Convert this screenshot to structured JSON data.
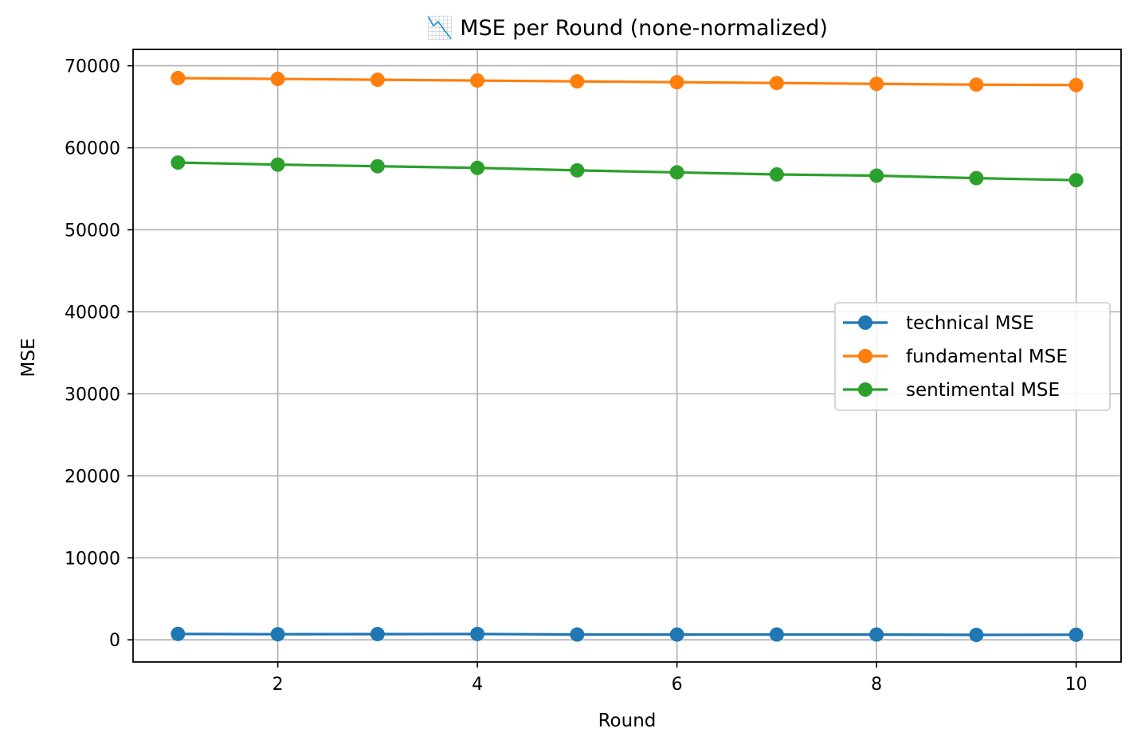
{
  "chart_data": {
    "type": "line",
    "title": "📉 MSE per Round (none-normalized)",
    "xlabel": "Round",
    "ylabel": "MSE",
    "x": [
      1,
      2,
      3,
      4,
      5,
      6,
      7,
      8,
      9,
      10
    ],
    "xlim": [
      0.55,
      10.45
    ],
    "ylim": [
      -2700,
      72000
    ],
    "xticks": [
      2,
      4,
      6,
      8,
      10
    ],
    "yticks": [
      0,
      10000,
      20000,
      30000,
      40000,
      50000,
      60000,
      70000
    ],
    "grid": true,
    "legend_position": "center-right",
    "series": [
      {
        "name": "technical MSE",
        "color": "#1f77b4",
        "values": [
          720,
          680,
          700,
          710,
          650,
          640,
          650,
          640,
          600,
          620
        ]
      },
      {
        "name": "fundamental MSE",
        "color": "#ff7f0e",
        "values": [
          68500,
          68400,
          68300,
          68200,
          68100,
          68000,
          67900,
          67800,
          67700,
          67650
        ]
      },
      {
        "name": "sentimental MSE",
        "color": "#2ca02c",
        "values": [
          58200,
          57950,
          57750,
          57550,
          57250,
          57000,
          56750,
          56600,
          56300,
          56050
        ]
      }
    ]
  }
}
